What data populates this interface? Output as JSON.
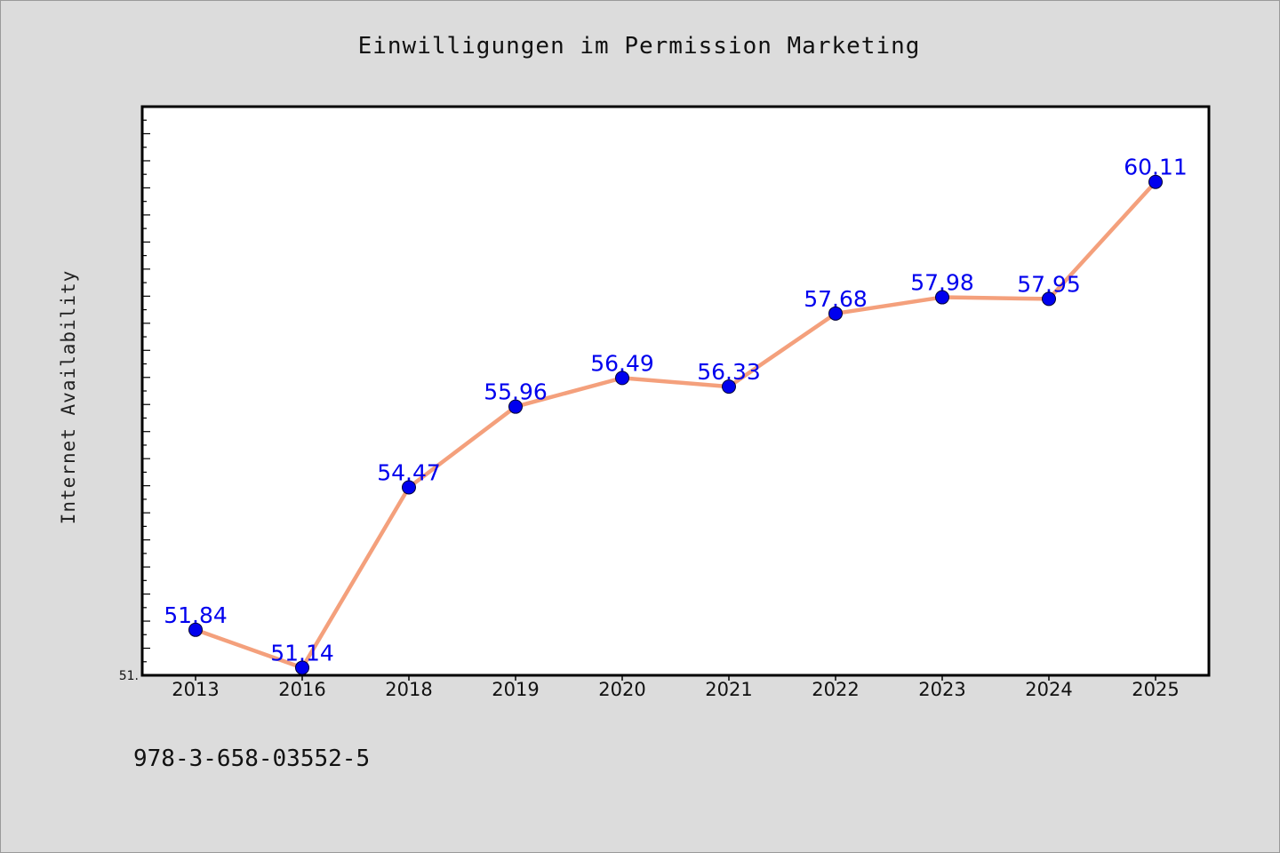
{
  "chart_data": {
    "type": "line",
    "title": "Einwilligungen im Permission Marketing",
    "xlabel": "",
    "ylabel": "Internet Availability",
    "categories": [
      "2013",
      "2016",
      "2018",
      "2019",
      "2020",
      "2021",
      "2022",
      "2023",
      "2024",
      "2025"
    ],
    "series": [
      {
        "values": [
          51.84,
          51.14,
          54.47,
          55.96,
          56.49,
          56.33,
          57.68,
          57.98,
          57.95,
          60.11
        ],
        "labels": [
          "51.84",
          "51.14",
          "54.47",
          "55.96",
          "56.49",
          "56.33",
          "57.68",
          "57.98",
          "57.95",
          "60.11"
        ]
      }
    ],
    "ylim": [
      51.0,
      61.5
    ],
    "y_tick_label": "51.",
    "grid": false,
    "line_color": "#f4a07c",
    "marker_color": "#0000ee",
    "label_color": "#0000ee"
  },
  "footer": {
    "isbn": "978-3-658-03552-5"
  }
}
